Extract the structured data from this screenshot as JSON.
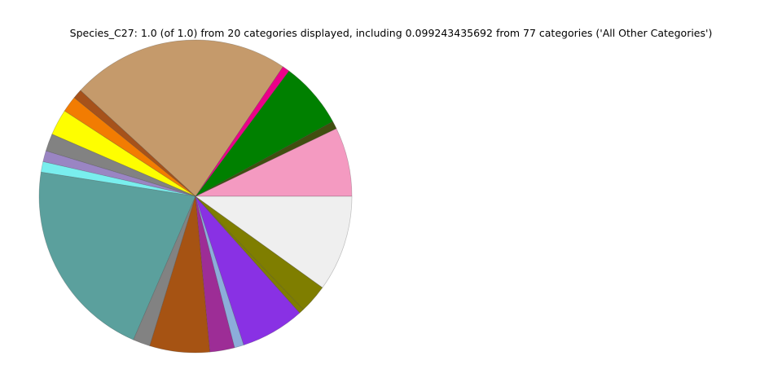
{
  "title": "Species_C27: 1.0 (of 1.0) from 20 categories displayed, including 0.099243435692 from 77 categories ('All Other Categories')",
  "chart_data": {
    "type": "pie",
    "title": "Species_C27: 1.0 (of 1.0) from 20 categories displayed, including 0.099243435692 from 77 categories ('All Other Categories')",
    "legend": "none",
    "slice_labels_visible": false,
    "start_angle_deg": 0,
    "direction": "counterclockwise",
    "categories_displayed": 20,
    "total_categories": 77,
    "all_other_categories_fraction": 0.099243435692,
    "slices": [
      {
        "color": "#F49AC1",
        "angle_deg": 25.7,
        "fraction": 0.0714
      },
      {
        "color": "#414E10",
        "angle_deg": 2.9,
        "fraction": 0.0081
      },
      {
        "color": "#008000",
        "angle_deg": 24.7,
        "fraction": 0.0686
      },
      {
        "color": "#EB0089",
        "angle_deg": 2.7,
        "fraction": 0.0075
      },
      {
        "color": "#C59A6B",
        "angle_deg": 81.4,
        "fraction": 0.2261
      },
      {
        "color": "#A6521B",
        "angle_deg": 3.5,
        "fraction": 0.0097
      },
      {
        "color": "#F27C02",
        "angle_deg": 6.0,
        "fraction": 0.0167
      },
      {
        "color": "#FEFE00",
        "angle_deg": 9.7,
        "fraction": 0.0269
      },
      {
        "color": "#828282",
        "angle_deg": 6.5,
        "fraction": 0.0181
      },
      {
        "color": "#9A85C3",
        "angle_deg": 4.1,
        "fraction": 0.0114
      },
      {
        "color": "#79EEEE",
        "angle_deg": 3.9,
        "fraction": 0.0108
      },
      {
        "color": "#5BA09D",
        "angle_deg": 75.5,
        "fraction": 0.2097
      },
      {
        "color": "#828282",
        "angle_deg": 6.4,
        "fraction": 0.0178
      },
      {
        "color": "#A65313",
        "angle_deg": 22.3,
        "fraction": 0.0619
      },
      {
        "color": "#9D2D96",
        "angle_deg": 9.2,
        "fraction": 0.0256
      },
      {
        "color": "#8CADDA",
        "angle_deg": 3.5,
        "fraction": 0.0097
      },
      {
        "color": "#8931E4",
        "angle_deg": 23.8,
        "fraction": 0.0661
      },
      {
        "color": "#7F7E00",
        "angle_deg": 1.8,
        "fraction": 0.005
      },
      {
        "color": "#7F7E00",
        "angle_deg": 10.7,
        "fraction": 0.0297
      },
      {
        "color": "#EFEFEF",
        "angle_deg": 35.7,
        "fraction": 0.0992,
        "label": "All Other Categories"
      }
    ]
  }
}
